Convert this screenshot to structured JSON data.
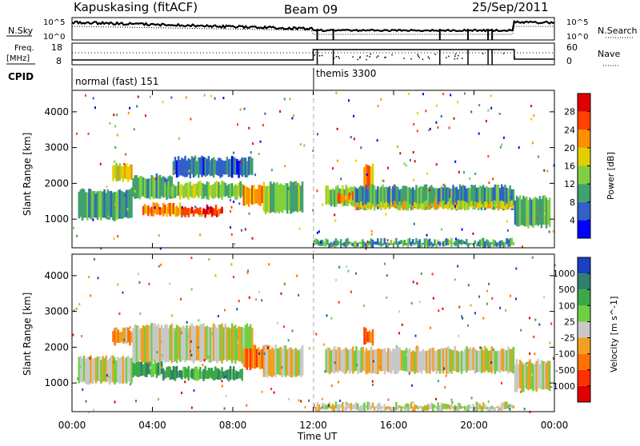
{
  "header": {
    "station": "Kapuskasing (fitACF)",
    "beam": "Beam 09",
    "date": "25/Sep/2011"
  },
  "top_panels": {
    "nsky_label": "N.Sky",
    "nsky_ticks": [
      "10^5",
      "10^0"
    ],
    "nsearch_label": "N.Search",
    "nsearch_ticks": [
      "10^5",
      "10^0"
    ],
    "freq_label_1": "Freq.",
    "freq_label_2": "[MHz]",
    "freq_ticks": [
      "18",
      "8"
    ],
    "nave_label": "Nave",
    "nave_ticks": [
      "60",
      "0"
    ],
    "cpid_label": "CPID",
    "cpid_segments": [
      {
        "label": "normal (fast) 151",
        "start_hour": 0,
        "end_hour": 12
      },
      {
        "label": "themis 3300",
        "start_hour": 12,
        "end_hour": 24
      }
    ]
  },
  "x_axis": {
    "title": "Time UT",
    "ticks": [
      "00:00",
      "04:00",
      "08:00",
      "12:00",
      "16:00",
      "20:00",
      "00:00"
    ]
  },
  "chart_data": [
    {
      "type": "heatmap",
      "name": "power",
      "ylabel": "Slant Range [km]",
      "xlim_hours": [
        0,
        24
      ],
      "ylim_km": [
        200,
        4600
      ],
      "y_ticks": [
        1000,
        2000,
        3000,
        4000
      ],
      "colorbar": {
        "label": "Power [dB]",
        "ticks": [
          "4",
          "8",
          "12",
          "16",
          "20",
          "24",
          "28"
        ],
        "colors": [
          "#0000ff",
          "#3060c8",
          "#40a070",
          "#80d040",
          "#e0d000",
          "#ff9000",
          "#ff4000",
          "#e00000"
        ]
      },
      "regions": [
        {
          "t0": 0.3,
          "t1": 3.0,
          "r0": 1000,
          "r1": 1800,
          "level": 2
        },
        {
          "t0": 2.0,
          "t1": 3.0,
          "r0": 2100,
          "r1": 2500,
          "level": 4
        },
        {
          "t0": 3.0,
          "t1": 5.0,
          "r0": 1600,
          "r1": 2200,
          "level": 2
        },
        {
          "t0": 3.5,
          "t1": 5.5,
          "r0": 1100,
          "r1": 1400,
          "level": 5
        },
        {
          "t0": 5.5,
          "t1": 7.5,
          "r0": 1100,
          "r1": 1300,
          "level": 6
        },
        {
          "t0": 6.5,
          "t1": 7.2,
          "r0": 1150,
          "r1": 1350,
          "level": 7
        },
        {
          "t0": 4.5,
          "t1": 8.5,
          "r0": 1600,
          "r1": 2000,
          "level": 3
        },
        {
          "t0": 8.5,
          "t1": 9.5,
          "r0": 1400,
          "r1": 1900,
          "level": 5
        },
        {
          "t0": 5.0,
          "t1": 9.0,
          "r0": 2200,
          "r1": 2700,
          "level": 1
        },
        {
          "t0": 9.5,
          "t1": 11.5,
          "r0": 1200,
          "r1": 2000,
          "level": 3
        },
        {
          "t0": 12.6,
          "t1": 14.0,
          "r0": 1400,
          "r1": 1900,
          "level": 3
        },
        {
          "t0": 13.2,
          "t1": 14.0,
          "r0": 1500,
          "r1": 1700,
          "level": 5
        },
        {
          "t0": 14.5,
          "t1": 15.0,
          "r0": 1800,
          "r1": 2500,
          "level": 5
        },
        {
          "t0": 14.0,
          "t1": 22.0,
          "r0": 1300,
          "r1": 1900,
          "level": 2
        },
        {
          "t0": 14.0,
          "t1": 22.0,
          "r0": 1300,
          "r1": 1450,
          "level": 4
        },
        {
          "t0": 12.0,
          "t1": 22.0,
          "r0": 250,
          "r1": 400,
          "level": 2
        },
        {
          "t0": 22.0,
          "t1": 23.8,
          "r0": 800,
          "r1": 1600,
          "level": 2
        }
      ]
    },
    {
      "type": "heatmap",
      "name": "velocity",
      "ylabel": "Slant Range [km]",
      "xlim_hours": [
        0,
        24
      ],
      "ylim_km": [
        200,
        4600
      ],
      "y_ticks": [
        1000,
        2000,
        3000,
        4000
      ],
      "colorbar": {
        "label": "Velocity [m s^-1]",
        "ticks": [
          "1000",
          "500",
          "100",
          "25",
          "-25",
          "-100",
          "-500",
          "-1000"
        ],
        "colors": [
          "#1a3fc0",
          "#2f7f6f",
          "#3da847",
          "#6cd040",
          "#c8c8c8",
          "#f0a020",
          "#ff7000",
          "#ff3000",
          "#e00000"
        ]
      },
      "regions": [
        {
          "t0": 0.3,
          "t1": 3.0,
          "r0": 1000,
          "r1": 1700,
          "level": 4
        },
        {
          "t0": 2.0,
          "t1": 3.0,
          "r0": 2100,
          "r1": 2500,
          "level": 5
        },
        {
          "t0": 3.0,
          "t1": 4.5,
          "r0": 1200,
          "r1": 1600,
          "level": 2
        },
        {
          "t0": 4.5,
          "t1": 8.5,
          "r0": 1100,
          "r1": 1400,
          "level": 2
        },
        {
          "t0": 3.0,
          "t1": 9.0,
          "r0": 1600,
          "r1": 2600,
          "level": 4
        },
        {
          "t0": 8.5,
          "t1": 9.8,
          "r0": 1400,
          "r1": 2000,
          "level": 6
        },
        {
          "t0": 9.5,
          "t1": 11.5,
          "r0": 1200,
          "r1": 2000,
          "level": 4
        },
        {
          "t0": 12.6,
          "t1": 22.0,
          "r0": 1300,
          "r1": 1950,
          "level": 4
        },
        {
          "t0": 14.5,
          "t1": 15.0,
          "r0": 2100,
          "r1": 2500,
          "level": 6
        },
        {
          "t0": 12.0,
          "t1": 22.0,
          "r0": 250,
          "r1": 400,
          "level": 4
        },
        {
          "t0": 22.0,
          "t1": 23.8,
          "r0": 800,
          "r1": 1600,
          "level": 4
        }
      ]
    }
  ]
}
